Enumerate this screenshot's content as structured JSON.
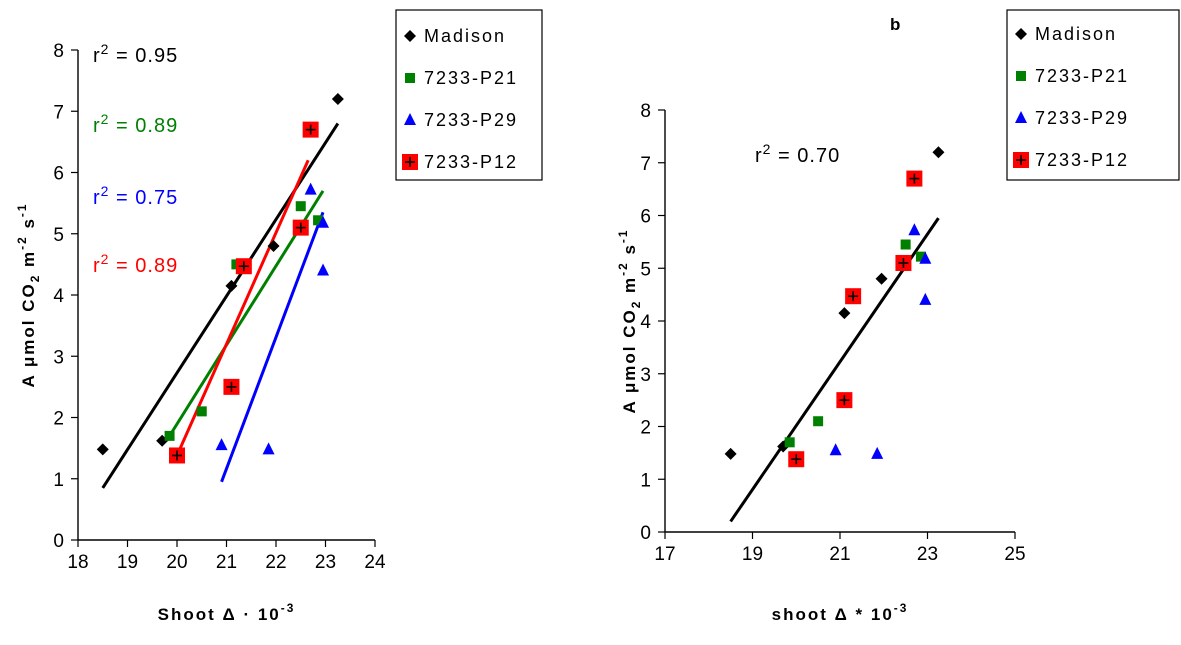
{
  "chart_data": [
    {
      "type": "scatter",
      "panel_label": "",
      "xlabel": "Shoot Δ · 10",
      "xlabel_sup": "-3",
      "ylabel": "A μmol CO",
      "ylabel_sub": "2",
      "ylabel_mid": " m",
      "ylabel_sup1": "-2",
      "ylabel_end": " s",
      "ylabel_sup2": "-1",
      "xlim": [
        18,
        24
      ],
      "ylim": [
        0,
        8
      ],
      "xticks": [
        "18",
        "19",
        "20",
        "21",
        "22",
        "23",
        "24"
      ],
      "yticks": [
        "0",
        "1",
        "2",
        "3",
        "4",
        "5",
        "6",
        "7",
        "8"
      ],
      "grid": false,
      "legend_position": "right",
      "series": [
        {
          "name": "Madison",
          "color": "#000000",
          "marker": "diamond",
          "x": [
            18.5,
            19.7,
            21.1,
            21.95,
            23.25
          ],
          "y": [
            1.48,
            1.62,
            4.15,
            4.8,
            7.2
          ],
          "fit": [
            [
              18.5,
              0.85
            ],
            [
              23.25,
              6.8
            ]
          ],
          "r2": "r² = 0.95"
        },
        {
          "name": "7233-P21",
          "color": "#008000",
          "marker": "square",
          "x": [
            19.85,
            20.5,
            21.2,
            22.5,
            22.85
          ],
          "y": [
            1.7,
            2.1,
            4.5,
            5.45,
            5.22
          ],
          "fit": [
            [
              19.85,
              1.7
            ],
            [
              22.95,
              5.7
            ]
          ],
          "r2": "r² = 0.89"
        },
        {
          "name": "7233-P29",
          "color": "#0000ff",
          "marker": "triangle",
          "x": [
            20.9,
            21.85,
            22.7,
            22.95,
            22.95
          ],
          "y": [
            1.55,
            1.48,
            5.72,
            5.18,
            4.4
          ],
          "fit": [
            [
              20.9,
              0.95
            ],
            [
              22.95,
              5.35
            ]
          ],
          "r2": "r² = 0.75"
        },
        {
          "name": "7233-P12",
          "color": "#ff0000",
          "marker": "cross-square",
          "x": [
            20.0,
            21.1,
            21.35,
            22.5,
            22.7
          ],
          "y": [
            1.38,
            2.5,
            4.47,
            5.1,
            6.7
          ],
          "fit": [
            [
              20.0,
              1.38
            ],
            [
              22.65,
              6.2
            ]
          ],
          "r2": "r² = 0.89"
        }
      ]
    },
    {
      "type": "scatter",
      "panel_label": "b",
      "xlabel": "shoot Δ * 10",
      "xlabel_sup": "-3",
      "ylabel": "A  μmol CO",
      "ylabel_sub": "2",
      "ylabel_mid": " m",
      "ylabel_sup1": "-2",
      "ylabel_end": " s",
      "ylabel_sup2": "-1",
      "xlim": [
        17,
        25
      ],
      "ylim": [
        0,
        8
      ],
      "xticks": [
        "17",
        "19",
        "21",
        "23",
        "25"
      ],
      "yticks": [
        "0",
        "1",
        "2",
        "3",
        "4",
        "5",
        "6",
        "7",
        "8"
      ],
      "grid": false,
      "legend_position": "right",
      "r2": "r² = 0.70",
      "fit": [
        [
          18.5,
          0.2
        ],
        [
          23.25,
          5.95
        ]
      ],
      "series": [
        {
          "name": "Madison",
          "color": "#000000",
          "marker": "diamond",
          "x": [
            18.5,
            19.7,
            21.1,
            21.95,
            23.25
          ],
          "y": [
            1.48,
            1.62,
            4.15,
            4.8,
            7.2
          ]
        },
        {
          "name": "7233-P21",
          "color": "#008000",
          "marker": "square",
          "x": [
            19.85,
            20.5,
            22.5,
            22.85
          ],
          "y": [
            1.7,
            2.1,
            5.45,
            5.22
          ]
        },
        {
          "name": "7233-P29",
          "color": "#0000ff",
          "marker": "triangle",
          "x": [
            20.9,
            21.85,
            22.7,
            22.95,
            22.95
          ],
          "y": [
            1.55,
            1.48,
            5.72,
            5.18,
            4.4
          ]
        },
        {
          "name": "7233-P12",
          "color": "#ff0000",
          "marker": "cross-square",
          "x": [
            20.0,
            21.1,
            21.3,
            22.45,
            22.7
          ],
          "y": [
            1.38,
            2.5,
            4.47,
            5.1,
            6.7
          ]
        }
      ]
    }
  ]
}
